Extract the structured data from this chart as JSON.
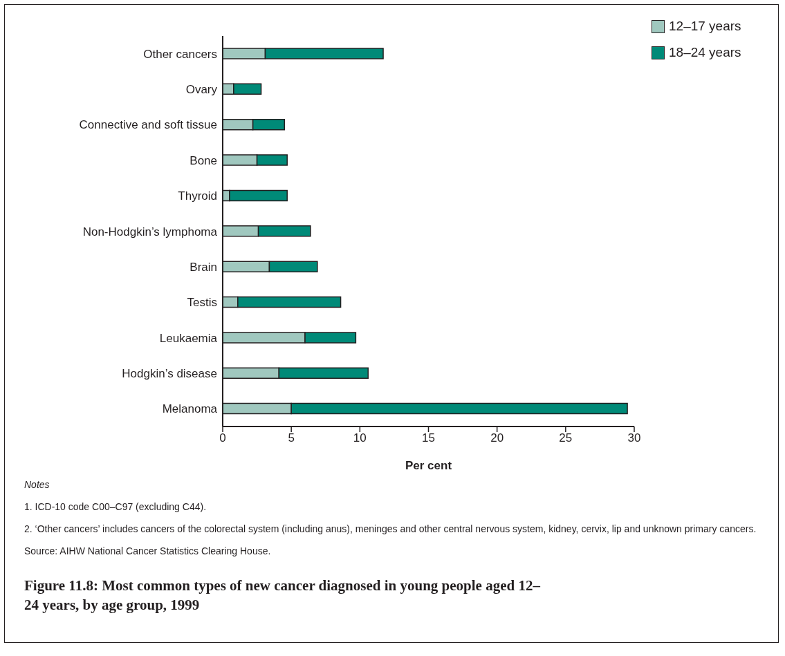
{
  "chart_data": {
    "type": "bar",
    "orientation": "horizontal",
    "stacked": true,
    "title": "Figure 11.8: Most common types of new cancer diagnosed in young people aged 12–24 years, by age group, 1999",
    "xlabel": "Per cent",
    "categories": [
      "Other cancers",
      "Ovary",
      "Connective and soft tissue",
      "Bone",
      "Thyroid",
      "Non-Hodgkin’s lymphoma",
      "Brain",
      "Testis",
      "Leukaemia",
      "Hodgkin’s disease",
      "Melanoma"
    ],
    "series": [
      {
        "name": "12–17 years",
        "color": "#a0c8bf",
        "values": [
          3.1,
          0.8,
          2.2,
          2.5,
          0.5,
          2.6,
          3.4,
          1.1,
          6.0,
          4.1,
          5.0
        ]
      },
      {
        "name": "18–24 years",
        "color": "#008a78",
        "values": [
          8.6,
          2.0,
          2.3,
          2.2,
          4.2,
          3.8,
          3.5,
          7.5,
          3.7,
          6.5,
          24.5
        ]
      }
    ],
    "xlim": [
      0,
      30
    ],
    "xticks": [
      0,
      5,
      10,
      15,
      20,
      25,
      30
    ],
    "grid": false,
    "legend": "top right",
    "annotations": [
      "Notes",
      "1. ICD-10 code C00–C97 (excluding C44).",
      "2. ‘Other cancers’ includes cancers of the colorectal system (including anus), meninges and other central nervous system, kidney, cervix, lip and unknown primary cancers.",
      "Source: AIHW National Cancer Statistics Clearing House."
    ]
  }
}
